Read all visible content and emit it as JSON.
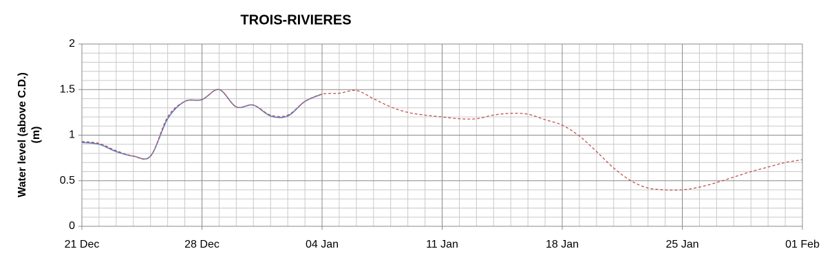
{
  "chart_data": {
    "type": "line",
    "title": "TROIS-RIVIERES",
    "ylabel": [
      "Water level (above C.D.)",
      "(m)"
    ],
    "categories": [
      "21 Dec",
      null,
      null,
      null,
      null,
      null,
      null,
      "28 Dec",
      null,
      null,
      null,
      null,
      null,
      null,
      "04 Jan",
      null,
      null,
      null,
      null,
      null,
      null,
      "11 Jan",
      null,
      null,
      null,
      null,
      null,
      null,
      "18 Jan",
      null,
      null,
      null,
      null,
      null,
      null,
      "25 Jan",
      null,
      null,
      null,
      null,
      null,
      null,
      "01 Feb"
    ],
    "series": [
      {
        "color": "#5a7cc4",
        "dash": false,
        "values": [
          0.92,
          0.9,
          0.82,
          0.77,
          0.77,
          1.18,
          1.37,
          1.39,
          1.5,
          1.31,
          1.33,
          1.21,
          1.21,
          1.37,
          1.45,
          null,
          null,
          null,
          null,
          null,
          null,
          null,
          null,
          null,
          null,
          null,
          null,
          null,
          null,
          null,
          null,
          null,
          null,
          null,
          null,
          null,
          null,
          null,
          null,
          null,
          null,
          null,
          null
        ]
      },
      {
        "color": "#c0504d",
        "dash": true,
        "values": [
          0.93,
          0.91,
          0.83,
          0.77,
          0.77,
          1.2,
          1.37,
          1.39,
          1.5,
          1.31,
          1.33,
          1.22,
          1.22,
          1.37,
          1.45,
          1.46,
          1.49,
          1.4,
          1.31,
          1.25,
          1.22,
          1.2,
          1.18,
          1.18,
          1.22,
          1.24,
          1.23,
          1.17,
          1.11,
          0.99,
          0.82,
          0.64,
          0.5,
          0.42,
          0.4,
          0.4,
          0.43,
          0.48,
          0.54,
          0.6,
          0.65,
          0.7,
          0.73
        ]
      }
    ],
    "ylim": [
      0,
      2
    ],
    "yticks": [
      0,
      0.5,
      1,
      1.5,
      2
    ],
    "yminor": [
      0.1,
      0.2,
      0.3,
      0.4,
      0.6,
      0.7,
      0.8,
      0.9,
      1.1,
      1.2,
      1.3,
      1.4,
      1.6,
      1.7,
      1.8,
      1.9
    ],
    "grid": true
  }
}
